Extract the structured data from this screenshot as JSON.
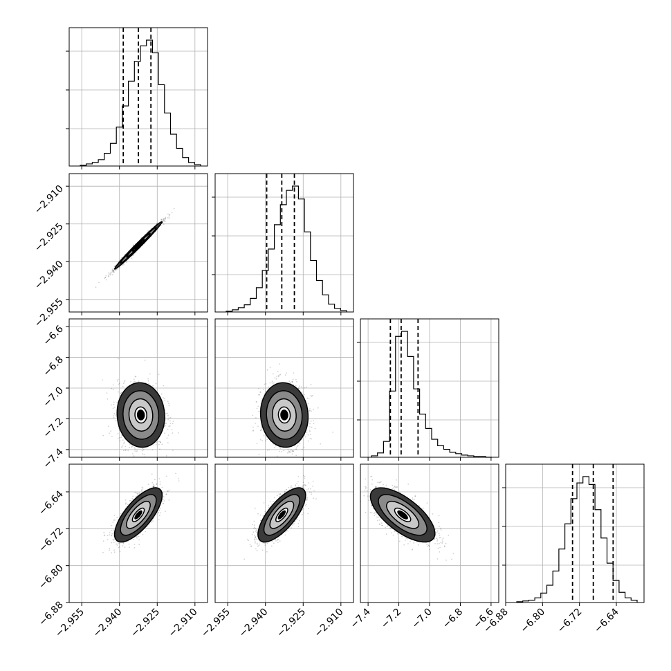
{
  "chart_data": {
    "type": "corner",
    "title": "",
    "parameters": [
      {
        "index": 0,
        "range": [
          -2.96,
          -2.905
        ],
        "ticks": [
          -2.955,
          -2.94,
          -2.925,
          -2.91
        ],
        "tick_labels": [
          "−2.955",
          "−2.940",
          "−2.925",
          "−2.910"
        ]
      },
      {
        "index": 1,
        "range": [
          -2.96,
          -2.905
        ],
        "ticks": [
          -2.955,
          -2.94,
          -2.925,
          -2.91
        ],
        "tick_labels": [
          "−2.955",
          "−2.940",
          "−2.925",
          "−2.910"
        ]
      },
      {
        "index": 2,
        "range": [
          -7.45,
          -6.55
        ],
        "ticks": [
          -7.4,
          -7.2,
          -7.0,
          -6.8,
          -6.6
        ],
        "tick_labels": [
          "−7.4",
          "−7.2",
          "−7.0",
          "−6.8",
          "−6.6"
        ]
      },
      {
        "index": 3,
        "range": [
          -6.88,
          -6.58
        ],
        "ticks": [
          -6.88,
          -6.8,
          -6.72,
          -6.64
        ],
        "tick_labels": [
          "−6.88",
          "−6.80",
          "−6.72",
          "−6.64"
        ]
      }
    ],
    "marginals": [
      {
        "param": 0,
        "quantiles": [
          -2.9385,
          -2.9325,
          -2.9275
        ],
        "counts": [
          1,
          3,
          5,
          9,
          18,
          32,
          55,
          85,
          120,
          148,
          170,
          178,
          160,
          115,
          75,
          45,
          25,
          12,
          5,
          2
        ]
      },
      {
        "param": 1,
        "quantiles": [
          -2.9395,
          -2.9335,
          -2.9285
        ],
        "counts": [
          1,
          3,
          6,
          10,
          19,
          34,
          58,
          88,
          122,
          150,
          170,
          176,
          158,
          112,
          72,
          44,
          24,
          11,
          5,
          2
        ]
      },
      {
        "param": 2,
        "quantiles": [
          -7.255,
          -7.185,
          -7.075
        ],
        "counts": [
          2,
          6,
          22,
          92,
          168,
          175,
          140,
          95,
          60,
          40,
          25,
          16,
          11,
          7,
          5,
          3,
          2,
          1,
          1,
          0
        ]
      },
      {
        "param": 3,
        "quantiles": [
          -6.735,
          -6.69,
          -6.647
        ],
        "counts": [
          1,
          2,
          3,
          6,
          12,
          22,
          40,
          68,
          100,
          132,
          152,
          160,
          150,
          118,
          82,
          50,
          28,
          13,
          6,
          3
        ]
      }
    ],
    "pairs": [
      {
        "x": 0,
        "y": 1,
        "mean": [
          -2.9325,
          -2.9335
        ],
        "sd": [
          0.0045,
          0.0045
        ],
        "corr": 0.99
      },
      {
        "x": 0,
        "y": 2,
        "mean": [
          -2.9315,
          -7.175
        ],
        "sd": [
          0.0045,
          0.1
        ],
        "corr": -0.05
      },
      {
        "x": 1,
        "y": 2,
        "mean": [
          -2.9325,
          -7.175
        ],
        "sd": [
          0.0045,
          0.1
        ],
        "corr": -0.05
      },
      {
        "x": 0,
        "y": 3,
        "mean": [
          -2.9325,
          -6.69
        ],
        "sd": [
          0.0045,
          0.028
        ],
        "corr": 0.72
      },
      {
        "x": 1,
        "y": 3,
        "mean": [
          -2.9335,
          -6.69
        ],
        "sd": [
          0.0045,
          0.028
        ],
        "corr": 0.72
      },
      {
        "x": 2,
        "y": 3,
        "mean": [
          -7.175,
          -6.69
        ],
        "sd": [
          0.1,
          0.028
        ],
        "corr": -0.68
      }
    ],
    "contour_levels": [
      0.5,
      1.0,
      1.5,
      2.0
    ],
    "grid": true,
    "quantile_lines": "dashed"
  }
}
